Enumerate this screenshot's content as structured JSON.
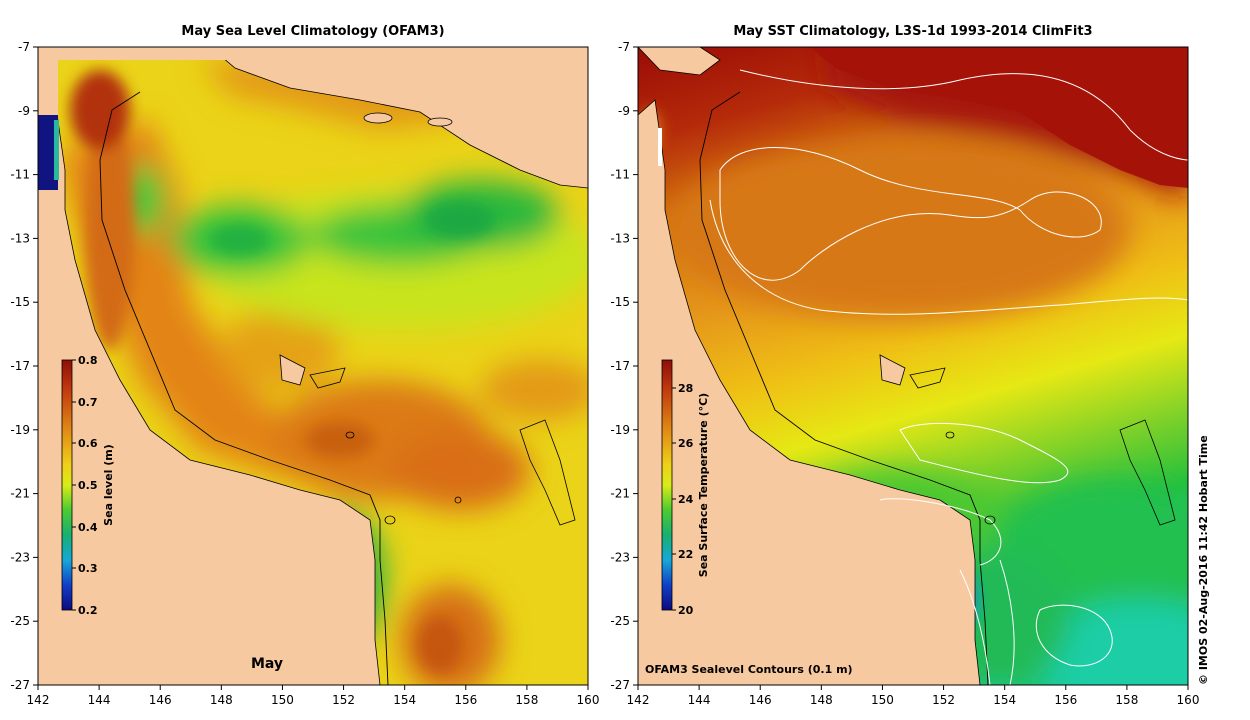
{
  "chart_data": [
    {
      "type": "heatmap",
      "title": "May Sea Level Climatology (OFAM3)",
      "variable": "Sea level (m)",
      "month_label": "May",
      "x_ticks": [
        "142",
        "144",
        "146",
        "148",
        "150",
        "152",
        "154",
        "156",
        "158",
        "160"
      ],
      "y_ticks": [
        "-7",
        "-9",
        "-11",
        "-13",
        "-15",
        "-17",
        "-19",
        "-21",
        "-23",
        "-25",
        "-27"
      ],
      "xlim": [
        142,
        160
      ],
      "ylim": [
        -27,
        -7
      ],
      "colorbar": {
        "label": "Sea level (m)",
        "ticks": [
          "0.8",
          "0.7",
          "0.6",
          "0.5",
          "0.4",
          "0.3",
          "0.2"
        ],
        "range": [
          0.2,
          0.8
        ]
      }
    },
    {
      "type": "heatmap",
      "title": "May SST Climatology, L3S-1d 1993-2014 ClimFit3",
      "variable": "Sea Surface Temperature (°C)",
      "x_ticks": [
        "142",
        "144",
        "146",
        "148",
        "150",
        "152",
        "154",
        "156",
        "158",
        "160"
      ],
      "y_ticks": [
        "-7",
        "-9",
        "-11",
        "-13",
        "-15",
        "-17",
        "-19",
        "-21",
        "-23",
        "-25",
        "-27"
      ],
      "xlim": [
        142,
        160
      ],
      "ylim": [
        -27,
        -7
      ],
      "colorbar": {
        "label": "Sea Surface Temperature (°C)",
        "ticks": [
          "28",
          "26",
          "24",
          "22",
          "20"
        ],
        "range": [
          20,
          29
        ]
      },
      "contour_note": "OFAM3 Sealevel Contours (0.1 m)"
    }
  ],
  "credit": "© IMOS 02-Aug-2016 11:42 Hobart Time",
  "colors": {
    "land": "#F7C9A0",
    "sst_hot": "#A51208",
    "sst_warm": "#DE8A12",
    "sst_mid": "#F2D40C",
    "sst_cool": "#1FB52E",
    "sst_cold": "#1ECDA6",
    "sl_high": "#E38418",
    "sl_mid": "#E9E81A",
    "sl_low": "#28C838"
  }
}
